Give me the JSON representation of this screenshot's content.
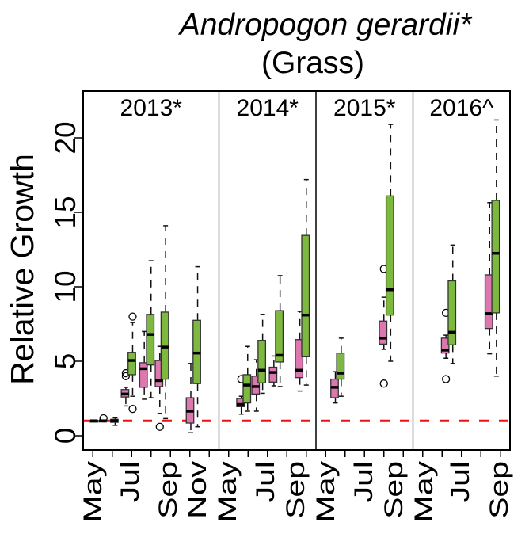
{
  "chart_data": {
    "type": "boxplot",
    "title": "Andropogon gerardii*",
    "subtitle": "(Grass)",
    "ylabel": "Relative Growth",
    "xlabel": "",
    "ylim": [
      0,
      20
    ],
    "yticks": [
      0,
      5,
      10,
      15,
      20
    ],
    "reference_line": {
      "value": 1,
      "color": "#ee1111",
      "style": "dashed"
    },
    "colors": {
      "pink": "#dd77b0",
      "green": "#7cb93e"
    },
    "panels": [
      {
        "label": "2013*",
        "month_range": [
          5,
          11
        ],
        "ticklabels": [
          {
            "month": 5,
            "label": "May"
          },
          {
            "month": 7,
            "label": "Jul"
          },
          {
            "month": 9,
            "label": "Sep"
          },
          {
            "month": 11,
            "label": "Nov"
          }
        ],
        "boxes": [
          {
            "month": 5.1,
            "group": "pink",
            "whislo": 0.97,
            "q1": 0.97,
            "med": 1.0,
            "q3": 1.02,
            "whishi": 1.02,
            "outliers": []
          },
          {
            "month": 5.55,
            "group": "pink",
            "whislo": 0.95,
            "q1": 0.97,
            "med": 1.0,
            "q3": 1.03,
            "whishi": 1.05,
            "outliers": [
              1.17
            ]
          },
          {
            "month": 6.15,
            "group": "green",
            "whislo": 0.7,
            "q1": 0.9,
            "med": 1.0,
            "q3": 1.1,
            "whishi": 1.2,
            "outliers": []
          },
          {
            "month": 6.7,
            "group": "pink",
            "whislo": 2.0,
            "q1": 2.6,
            "med": 2.8,
            "q3": 3.1,
            "whishi": 3.25,
            "outliers": [
              4.0,
              4.2
            ]
          },
          {
            "month": 7.05,
            "group": "green",
            "whislo": 2.65,
            "q1": 4.1,
            "med": 5.05,
            "q3": 5.6,
            "whishi": 7.6,
            "outliers": [
              8.0,
              1.8
            ]
          },
          {
            "month": 7.65,
            "group": "pink",
            "whislo": 2.45,
            "q1": 3.25,
            "med": 4.5,
            "q3": 4.9,
            "whishi": 7.0,
            "outliers": []
          },
          {
            "month": 8.0,
            "group": "green",
            "whislo": 2.55,
            "q1": 4.75,
            "med": 6.8,
            "q3": 8.15,
            "whishi": 11.75,
            "outliers": []
          },
          {
            "month": 8.45,
            "group": "pink",
            "whislo": 1.5,
            "q1": 3.3,
            "med": 3.7,
            "q3": 5.05,
            "whishi": 6.0,
            "outliers": [
              0.6
            ]
          },
          {
            "month": 8.75,
            "group": "green",
            "whislo": 1.15,
            "q1": 3.8,
            "med": 5.95,
            "q3": 8.3,
            "whishi": 14.1,
            "outliers": []
          },
          {
            "month": 10.05,
            "group": "pink",
            "whislo": 0.2,
            "q1": 0.85,
            "med": 1.65,
            "q3": 2.55,
            "whishi": 4.85,
            "outliers": []
          },
          {
            "month": 10.4,
            "group": "green",
            "whislo": 0.6,
            "q1": 3.5,
            "med": 5.55,
            "q3": 7.75,
            "whishi": 11.35,
            "outliers": []
          }
        ]
      },
      {
        "label": "2014*",
        "month_range": [
          5,
          9
        ],
        "ticklabels": [
          {
            "month": 5,
            "label": "May"
          },
          {
            "month": 7,
            "label": "Jul"
          },
          {
            "month": 9,
            "label": "Sep"
          }
        ],
        "boxes": [
          {
            "month": 5.65,
            "group": "pink",
            "whislo": 1.45,
            "q1": 1.95,
            "med": 2.1,
            "q3": 2.5,
            "whishi": 2.65,
            "outliers": [
              3.8
            ]
          },
          {
            "month": 5.98,
            "group": "green",
            "whislo": 1.65,
            "q1": 2.2,
            "med": 3.4,
            "q3": 4.1,
            "whishi": 6.0,
            "outliers": []
          },
          {
            "month": 6.43,
            "group": "pink",
            "whislo": 1.65,
            "q1": 2.8,
            "med": 3.3,
            "q3": 4.0,
            "whishi": 5.1,
            "outliers": []
          },
          {
            "month": 6.75,
            "group": "green",
            "whislo": 2.85,
            "q1": 3.55,
            "med": 4.4,
            "q3": 6.4,
            "whishi": 8.15,
            "outliers": []
          },
          {
            "month": 7.33,
            "group": "pink",
            "whislo": 3.35,
            "q1": 3.6,
            "med": 4.25,
            "q3": 4.6,
            "whishi": 5.35,
            "outliers": []
          },
          {
            "month": 7.65,
            "group": "green",
            "whislo": 3.3,
            "q1": 4.95,
            "med": 5.4,
            "q3": 8.4,
            "whishi": 10.75,
            "outliers": []
          },
          {
            "month": 8.67,
            "group": "pink",
            "whislo": 3.0,
            "q1": 3.9,
            "med": 4.4,
            "q3": 6.45,
            "whishi": 8.35,
            "outliers": []
          },
          {
            "month": 9.0,
            "group": "green",
            "whislo": 3.4,
            "q1": 5.3,
            "med": 8.1,
            "q3": 13.45,
            "whishi": 17.2,
            "outliers": []
          }
        ]
      },
      {
        "label": "2015*",
        "month_range": [
          5,
          9
        ],
        "ticklabels": [
          {
            "month": 5,
            "label": "May"
          },
          {
            "month": 7,
            "label": "Jul"
          },
          {
            "month": 9,
            "label": "Sep"
          }
        ],
        "boxes": [
          {
            "month": 5.5,
            "group": "pink",
            "whislo": 2.2,
            "q1": 2.55,
            "med": 3.25,
            "q3": 3.8,
            "whishi": 4.3,
            "outliers": []
          },
          {
            "month": 5.8,
            "group": "green",
            "whislo": 2.65,
            "q1": 3.8,
            "med": 4.2,
            "q3": 5.55,
            "whishi": 6.55,
            "outliers": []
          },
          {
            "month": 8.0,
            "group": "pink",
            "whislo": 5.8,
            "q1": 6.15,
            "med": 6.55,
            "q3": 7.7,
            "whishi": 9.3,
            "outliers": [
              11.2,
              3.5
            ]
          },
          {
            "month": 8.35,
            "group": "green",
            "whislo": 5.0,
            "q1": 8.1,
            "med": 9.8,
            "q3": 16.1,
            "whishi": 20.9,
            "outliers": []
          }
        ]
      },
      {
        "label": "2016^",
        "month_range": [
          5,
          9
        ],
        "ticklabels": [
          {
            "month": 5,
            "label": "May"
          },
          {
            "month": 7,
            "label": "Jul"
          },
          {
            "month": 9,
            "label": "Sep"
          }
        ],
        "boxes": [
          {
            "month": 6.2,
            "group": "pink",
            "whislo": 5.2,
            "q1": 5.55,
            "med": 5.75,
            "q3": 6.55,
            "whishi": 6.75,
            "outliers": [
              8.25,
              3.8
            ]
          },
          {
            "month": 6.55,
            "group": "green",
            "whislo": 4.85,
            "q1": 6.1,
            "med": 6.95,
            "q3": 10.4,
            "whishi": 12.8,
            "outliers": []
          },
          {
            "month": 8.45,
            "group": "pink",
            "whislo": 5.5,
            "q1": 7.2,
            "med": 8.2,
            "q3": 10.8,
            "whishi": 15.65,
            "outliers": []
          },
          {
            "month": 8.8,
            "group": "green",
            "whislo": 4.0,
            "q1": 8.25,
            "med": 12.25,
            "q3": 15.8,
            "whishi": 21.2,
            "outliers": []
          }
        ]
      }
    ]
  }
}
